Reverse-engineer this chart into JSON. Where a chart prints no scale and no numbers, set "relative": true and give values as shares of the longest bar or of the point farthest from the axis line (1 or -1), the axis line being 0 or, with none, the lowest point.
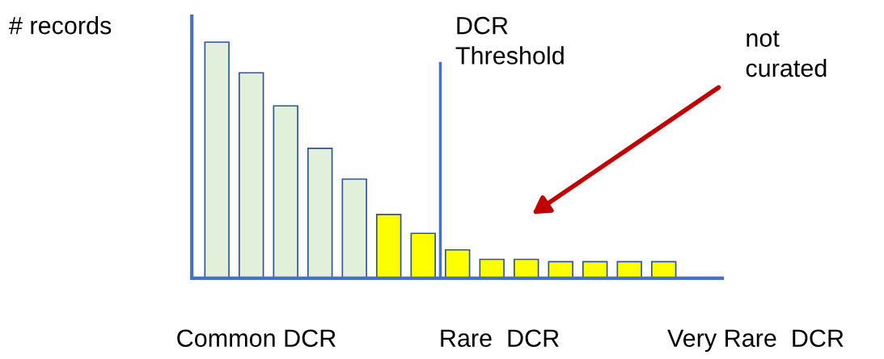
{
  "chart_data": {
    "type": "bar",
    "relative": true,
    "ylabel": "# records",
    "categories": [
      null,
      null,
      null,
      null,
      null,
      null,
      null,
      null,
      null,
      null,
      null,
      null,
      null,
      null
    ],
    "values": [
      1,
      0.87,
      0.73,
      0.55,
      0.42,
      0.27,
      0.19,
      0.12,
      0.08,
      0.08,
      0.07,
      0.07,
      0.07,
      0.07
    ],
    "colors": [
      "#e2efda",
      "#e2efda",
      "#e2efda",
      "#e2efda",
      "#e2efda",
      "#ffff00",
      "#ffff00",
      "#ffff00",
      "#ffff00",
      "#ffff00",
      "#ffff00",
      "#ffff00",
      "#ffff00",
      "#ffff00"
    ],
    "annotations": [
      "DCR\nThreshold",
      "not\ncurated",
      "Common DCR",
      "Rare  DCR",
      "Very Rare  DCR"
    ],
    "grid": false,
    "legend": false
  }
}
